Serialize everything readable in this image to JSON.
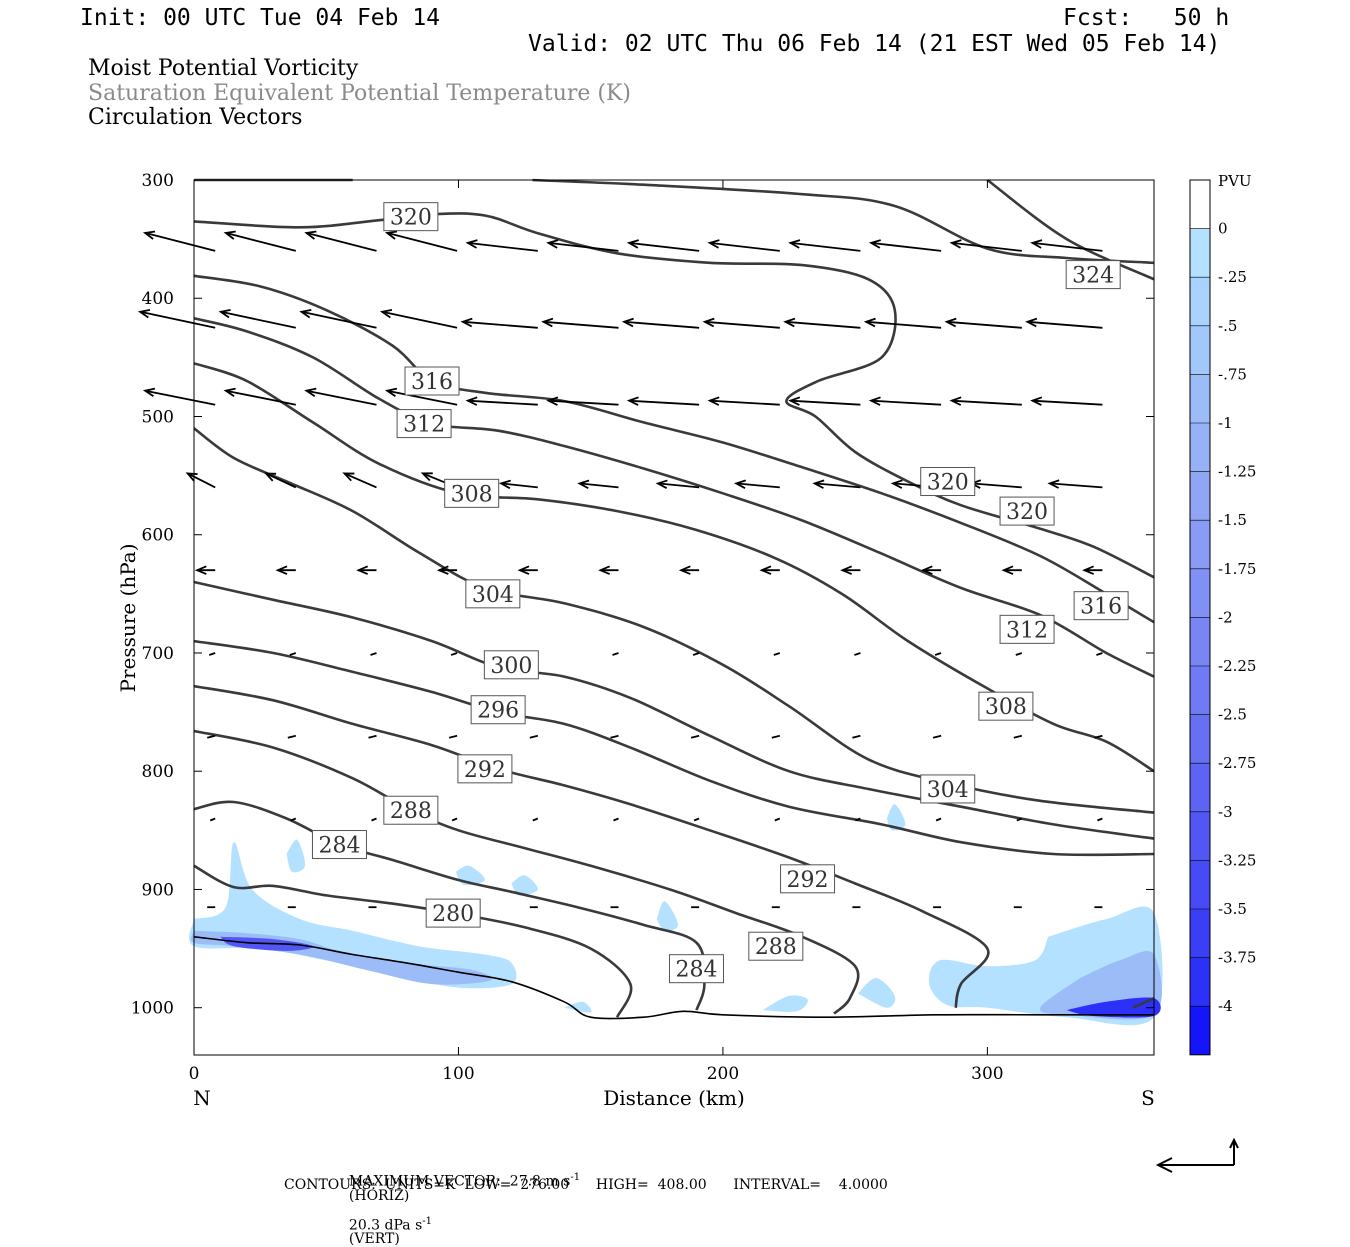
{
  "header": {
    "init": "Init: 00 UTC Tue 04 Feb 14",
    "fcst": "Fcst:   50 h",
    "valid": "Valid: 02 UTC Thu 06 Feb 14 (21 EST Wed 05 Feb 14)",
    "field1": "Moist Potential Vorticity",
    "field2": "Saturation Equivalent Potential Temperature (K)",
    "field3": "Circulation Vectors"
  },
  "footer": {
    "max_vector": "MAXIMUM VECTOR:  27.8 m s",
    "horiz": "(HORIZ)",
    "vert_val": "20.3 dPa s",
    "vert": "(VERT)",
    "contours": "CONTOURS:  UNITS=K  LOW=  276.00      HIGH=  408.00      INTERVAL=    4.0000"
  },
  "chart_data": {
    "type": "contour",
    "xlabel": "Distance (km)",
    "ylabel": "Pressure (hPa)",
    "xlim": [
      0,
      363
    ],
    "ylim": [
      1040,
      300
    ],
    "x_ticks": [
      0,
      100,
      200,
      300
    ],
    "y_ticks": [
      300,
      400,
      500,
      600,
      700,
      800,
      900,
      1000
    ],
    "x_end_labels": {
      "left": "N",
      "right": "S"
    },
    "colorbar": {
      "title": "PVU",
      "labels": [
        "0",
        "-.25",
        "-.5",
        "-.75",
        "-1",
        "-1.25",
        "-1.5",
        "-1.75",
        "-2",
        "-2.25",
        "-2.5",
        "-2.75",
        "-3",
        "-3.25",
        "-3.5",
        "-3.75",
        "-4"
      ],
      "colors": [
        "#ffffff",
        "#b3e1ff",
        "#a9d2ff",
        "#a2c8fb",
        "#9cbcf8",
        "#97b1f7",
        "#90a6f5",
        "#899bf4",
        "#8190f4",
        "#7985f3",
        "#707af3",
        "#676ff3",
        "#5d63f4",
        "#5257f4",
        "#464bf5",
        "#3a3ff6",
        "#2d31f8",
        "#1515fc"
      ]
    },
    "contour_labels": [
      {
        "label": "320",
        "x": 82,
        "p": 331
      },
      {
        "label": "324",
        "x": 340,
        "p": 380
      },
      {
        "label": "316",
        "x": 90,
        "p": 470
      },
      {
        "label": "312",
        "x": 87,
        "p": 506
      },
      {
        "label": "308",
        "x": 105,
        "p": 565
      },
      {
        "label": "320",
        "x": 285,
        "p": 555
      },
      {
        "label": "320",
        "x": 315,
        "p": 580
      },
      {
        "label": "304",
        "x": 113,
        "p": 650
      },
      {
        "label": "316",
        "x": 343,
        "p": 660
      },
      {
        "label": "312",
        "x": 315,
        "p": 680
      },
      {
        "label": "300",
        "x": 120,
        "p": 710
      },
      {
        "label": "296",
        "x": 115,
        "p": 748
      },
      {
        "label": "308",
        "x": 307,
        "p": 745
      },
      {
        "label": "292",
        "x": 110,
        "p": 798
      },
      {
        "label": "304",
        "x": 285,
        "p": 815
      },
      {
        "label": "288",
        "x": 82,
        "p": 833
      },
      {
        "label": "284",
        "x": 55,
        "p": 862
      },
      {
        "label": "292",
        "x": 232,
        "p": 891
      },
      {
        "label": "280",
        "x": 98,
        "p": 920
      },
      {
        "label": "288",
        "x": 220,
        "p": 948
      },
      {
        "label": "284",
        "x": 190,
        "p": 967
      }
    ],
    "isentropes": [
      {
        "theta": 324,
        "points": [
          [
            0,
            300
          ],
          [
            60,
            300
          ]
        ]
      },
      {
        "theta": 324,
        "points": [
          [
            128,
            300
          ],
          [
            170,
            304
          ],
          [
            230,
            312
          ],
          [
            265,
            322
          ],
          [
            300,
            358
          ],
          [
            330,
            366
          ],
          [
            363,
            370
          ]
        ]
      },
      {
        "theta": 320,
        "points": [
          [
            0,
            335
          ],
          [
            40,
            340
          ],
          [
            70,
            334
          ],
          [
            90,
            329
          ],
          [
            110,
            330
          ],
          [
            130,
            345
          ],
          [
            160,
            362
          ],
          [
            195,
            370
          ],
          [
            230,
            372
          ],
          [
            255,
            384
          ],
          [
            265,
            410
          ],
          [
            260,
            450
          ],
          [
            236,
            470
          ],
          [
            224,
            487
          ],
          [
            235,
            500
          ],
          [
            250,
            530
          ],
          [
            270,
            555
          ],
          [
            290,
            575
          ],
          [
            320,
            595
          ],
          [
            340,
            610
          ],
          [
            363,
            636
          ]
        ]
      },
      {
        "theta": 320,
        "points": [
          [
            300,
            300
          ],
          [
            330,
            350
          ],
          [
            363,
            384
          ]
        ]
      },
      {
        "theta": 316,
        "points": [
          [
            0,
            381
          ],
          [
            25,
            390
          ],
          [
            50,
            410
          ],
          [
            75,
            440
          ],
          [
            90,
            470
          ],
          [
            110,
            480
          ],
          [
            140,
            487
          ],
          [
            170,
            505
          ],
          [
            200,
            522
          ],
          [
            230,
            543
          ],
          [
            260,
            565
          ],
          [
            290,
            590
          ],
          [
            320,
            618
          ],
          [
            345,
            650
          ],
          [
            363,
            674
          ]
        ]
      },
      {
        "theta": 312,
        "points": [
          [
            0,
            417
          ],
          [
            20,
            428
          ],
          [
            45,
            450
          ],
          [
            70,
            485
          ],
          [
            90,
            506
          ],
          [
            115,
            512
          ],
          [
            140,
            525
          ],
          [
            170,
            544
          ],
          [
            200,
            565
          ],
          [
            230,
            588
          ],
          [
            260,
            616
          ],
          [
            290,
            645
          ],
          [
            320,
            668
          ],
          [
            345,
            700
          ],
          [
            363,
            720
          ]
        ]
      },
      {
        "theta": 308,
        "points": [
          [
            0,
            455
          ],
          [
            20,
            470
          ],
          [
            45,
            505
          ],
          [
            70,
            540
          ],
          [
            100,
            565
          ],
          [
            130,
            570
          ],
          [
            160,
            580
          ],
          [
            190,
            596
          ],
          [
            220,
            620
          ],
          [
            245,
            650
          ],
          [
            270,
            690
          ],
          [
            300,
            730
          ],
          [
            325,
            760
          ],
          [
            345,
            775
          ],
          [
            363,
            800
          ]
        ]
      },
      {
        "theta": 304,
        "points": [
          [
            0,
            510
          ],
          [
            15,
            535
          ],
          [
            35,
            555
          ],
          [
            60,
            580
          ],
          [
            85,
            615
          ],
          [
            110,
            645
          ],
          [
            140,
            658
          ],
          [
            170,
            678
          ],
          [
            200,
            710
          ],
          [
            225,
            745
          ],
          [
            255,
            790
          ],
          [
            285,
            810
          ],
          [
            320,
            825
          ],
          [
            363,
            835
          ]
        ]
      },
      {
        "theta": 300,
        "points": [
          [
            0,
            640
          ],
          [
            30,
            655
          ],
          [
            60,
            670
          ],
          [
            90,
            690
          ],
          [
            115,
            712
          ],
          [
            140,
            720
          ],
          [
            165,
            738
          ],
          [
            195,
            770
          ],
          [
            225,
            800
          ],
          [
            255,
            815
          ],
          [
            290,
            830
          ],
          [
            325,
            845
          ],
          [
            363,
            857
          ]
        ]
      },
      {
        "theta": 296,
        "points": [
          [
            0,
            690
          ],
          [
            30,
            700
          ],
          [
            60,
            716
          ],
          [
            90,
            733
          ],
          [
            115,
            750
          ],
          [
            140,
            760
          ],
          [
            165,
            780
          ],
          [
            195,
            808
          ],
          [
            225,
            830
          ],
          [
            260,
            845
          ],
          [
            290,
            860
          ],
          [
            325,
            870
          ],
          [
            363,
            870
          ]
        ]
      },
      {
        "theta": 292,
        "points": [
          [
            0,
            728
          ],
          [
            30,
            740
          ],
          [
            60,
            760
          ],
          [
            90,
            778
          ],
          [
            115,
            798
          ],
          [
            140,
            812
          ],
          [
            165,
            828
          ],
          [
            195,
            850
          ],
          [
            225,
            873
          ],
          [
            250,
            895
          ],
          [
            275,
            918
          ],
          [
            300,
            950
          ],
          [
            290,
            980
          ],
          [
            288,
            1000
          ]
        ]
      },
      {
        "theta": 288,
        "points": [
          [
            0,
            766
          ],
          [
            30,
            780
          ],
          [
            60,
            806
          ],
          [
            82,
            833
          ],
          [
            100,
            850
          ],
          [
            125,
            865
          ],
          [
            150,
            880
          ],
          [
            180,
            900
          ],
          [
            205,
            920
          ],
          [
            230,
            940
          ],
          [
            250,
            965
          ],
          [
            248,
            992
          ],
          [
            242,
            1005
          ]
        ]
      },
      {
        "theta": 284,
        "points": [
          [
            0,
            832
          ],
          [
            15,
            826
          ],
          [
            35,
            840
          ],
          [
            55,
            862
          ],
          [
            75,
            875
          ],
          [
            100,
            892
          ],
          [
            120,
            902
          ],
          [
            145,
            915
          ],
          [
            170,
            930
          ],
          [
            190,
            945
          ],
          [
            193,
            980
          ],
          [
            190,
            1002
          ]
        ]
      },
      {
        "theta": 280,
        "points": [
          [
            0,
            880
          ],
          [
            15,
            898
          ],
          [
            30,
            897
          ],
          [
            50,
            905
          ],
          [
            75,
            912
          ],
          [
            98,
            920
          ],
          [
            125,
            932
          ],
          [
            150,
            950
          ],
          [
            165,
            980
          ],
          [
            160,
            1008
          ]
        ]
      },
      {
        "theta": 284,
        "points": [
          [
            355,
            1000
          ],
          [
            363,
            992
          ]
        ]
      }
    ],
    "terrain": [
      [
        0,
        940
      ],
      [
        20,
        945
      ],
      [
        40,
        947
      ],
      [
        60,
        955
      ],
      [
        80,
        962
      ],
      [
        100,
        970
      ],
      [
        120,
        978
      ],
      [
        140,
        995
      ],
      [
        150,
        1008
      ],
      [
        170,
        1008
      ],
      [
        185,
        1003
      ],
      [
        200,
        1006
      ],
      [
        240,
        1008
      ],
      [
        280,
        1006
      ],
      [
        320,
        1006
      ],
      [
        363,
        1006
      ]
    ]
  }
}
